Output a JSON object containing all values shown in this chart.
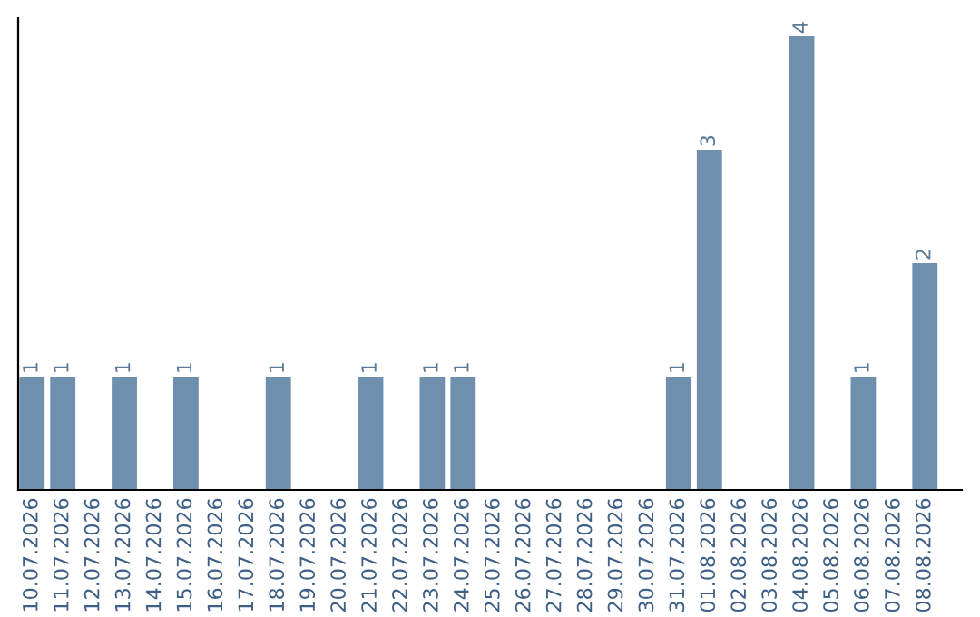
{
  "chart_data": {
    "type": "bar",
    "categories": [
      "10.07.2026",
      "11.07.2026",
      "12.07.2026",
      "13.07.2026",
      "14.07.2026",
      "15.07.2026",
      "16.07.2026",
      "17.07.2026",
      "18.07.2026",
      "19.07.2026",
      "20.07.2026",
      "21.07.2026",
      "22.07.2026",
      "23.07.2026",
      "24.07.2026",
      "25.07.2026",
      "26.07.2026",
      "27.07.2026",
      "28.07.2026",
      "29.07.2026",
      "30.07.2026",
      "31.07.2026",
      "01.08.2026",
      "02.08.2026",
      "03.08.2026",
      "04.08.2026",
      "05.08.2026",
      "06.08.2026",
      "07.08.2026",
      "08.08.2026"
    ],
    "values": [
      1,
      1,
      0,
      1,
      0,
      1,
      0,
      0,
      1,
      0,
      0,
      1,
      0,
      1,
      1,
      0,
      0,
      0,
      0,
      0,
      0,
      1,
      3,
      0,
      0,
      4,
      0,
      1,
      0,
      2
    ],
    "value_labels": [
      "1",
      "1",
      null,
      "1",
      null,
      "1",
      null,
      null,
      "1",
      null,
      null,
      "1",
      null,
      "1",
      "1",
      null,
      null,
      null,
      null,
      null,
      null,
      "1",
      "3",
      null,
      null,
      "4",
      null,
      "1",
      null,
      "2"
    ],
    "color": "#6f8fae",
    "grid": false,
    "legend": false
  }
}
